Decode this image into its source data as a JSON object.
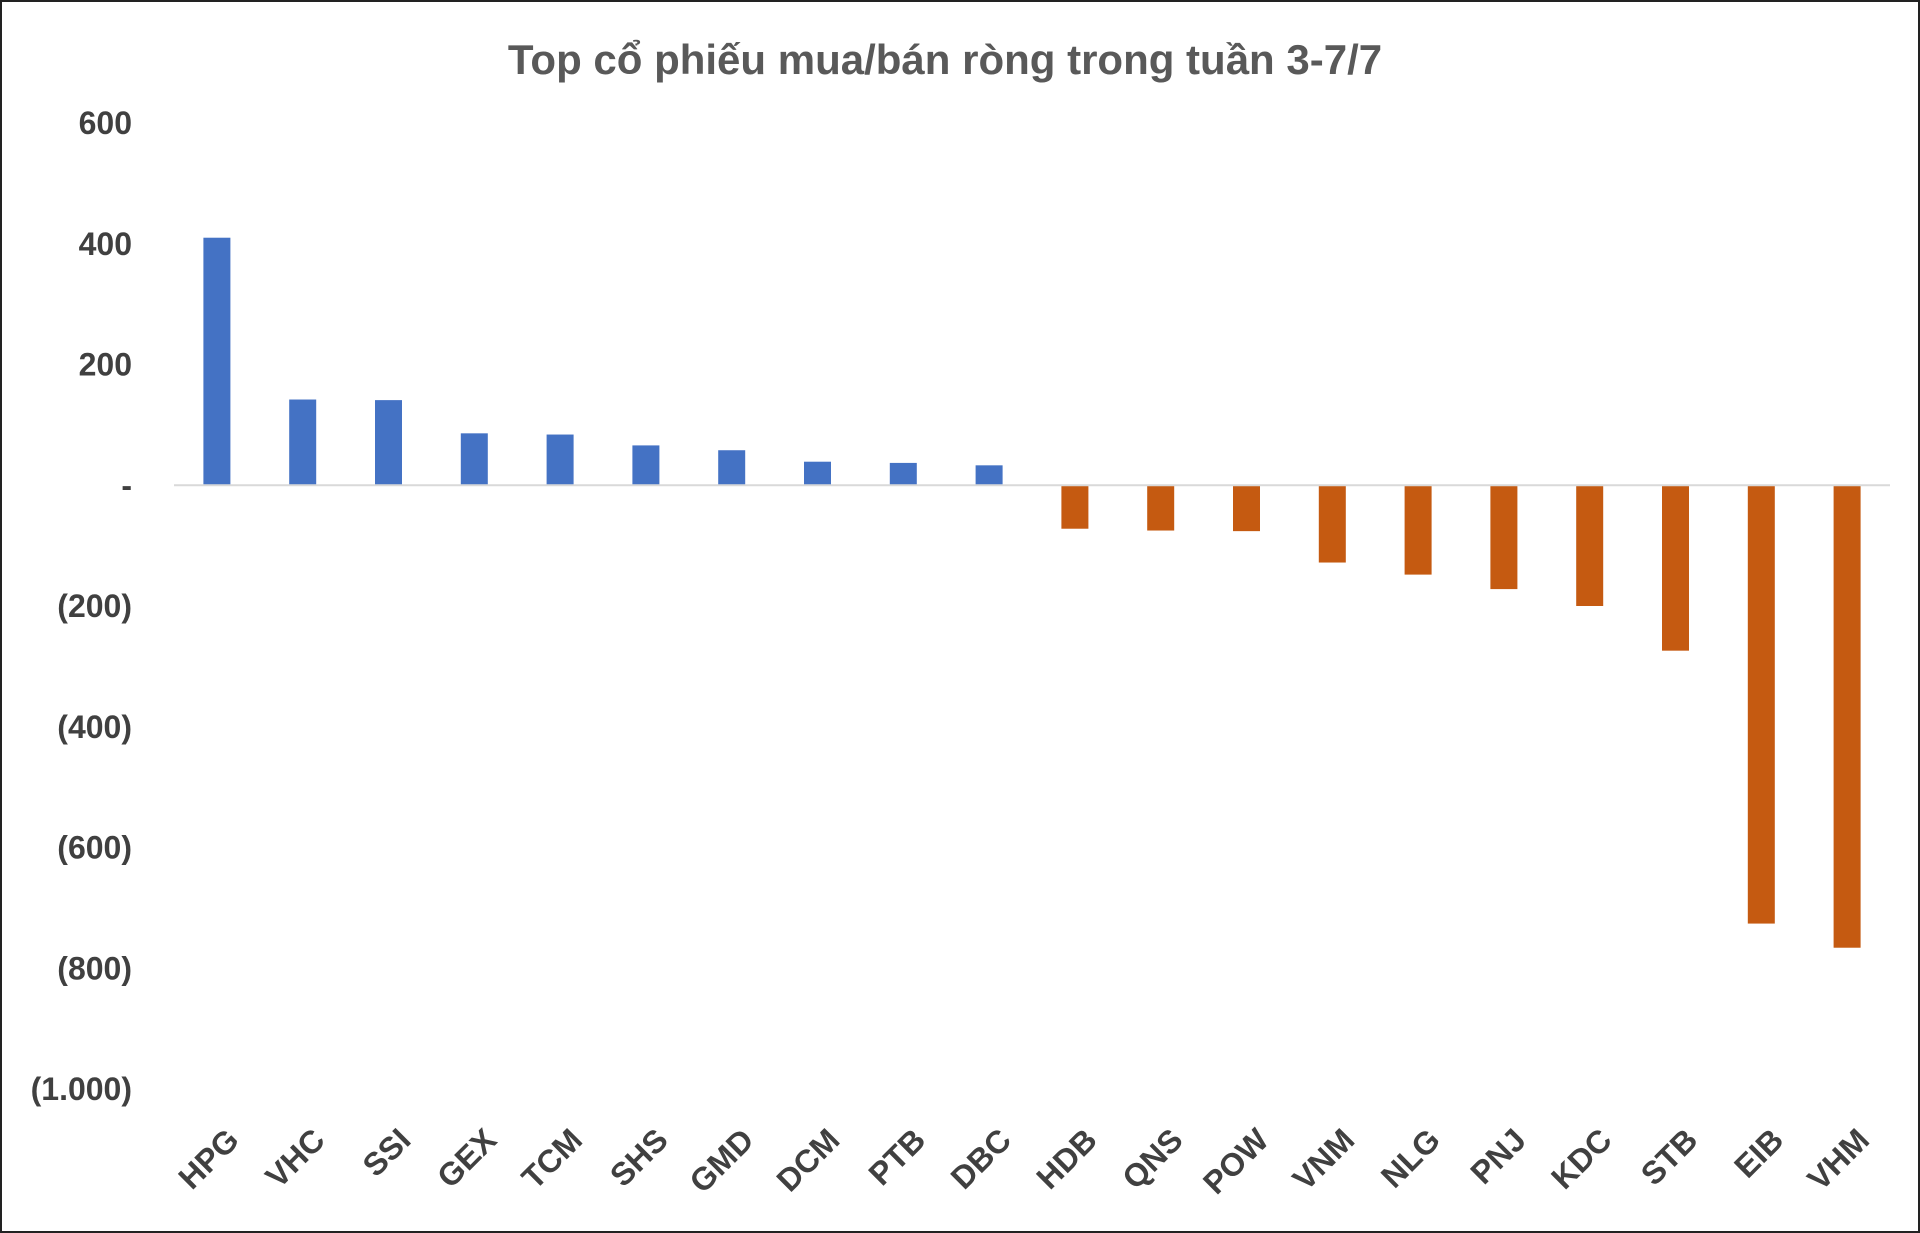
{
  "chart_data": {
    "type": "bar",
    "title": "Top cổ phiếu mua/bán ròng trong tuần 3-7/7",
    "xlabel": "",
    "ylabel": "",
    "ylim": [
      -1000,
      600
    ],
    "y_ticks": [
      {
        "value": 600,
        "label": "600"
      },
      {
        "value": 400,
        "label": "400"
      },
      {
        "value": 200,
        "label": "200"
      },
      {
        "value": 0,
        "label": "-"
      },
      {
        "value": -200,
        "label": "(200)"
      },
      {
        "value": -400,
        "label": "(400)"
      },
      {
        "value": -600,
        "label": "(600)"
      },
      {
        "value": -800,
        "label": "(800)"
      },
      {
        "value": -1000,
        "label": "(1.000)"
      }
    ],
    "categories": [
      "HPG",
      "VHC",
      "SSI",
      "GEX",
      "TCM",
      "SHS",
      "GMD",
      "DCM",
      "PTB",
      "DBC",
      "HDB",
      "QNS",
      "POW",
      "VNM",
      "NLG",
      "PNJ",
      "KDC",
      "STB",
      "EIB",
      "VHM"
    ],
    "values": [
      410,
      142,
      141,
      86,
      84,
      66,
      58,
      39,
      37,
      33,
      -72,
      -75,
      -76,
      -128,
      -148,
      -172,
      -200,
      -274,
      -726,
      -766
    ],
    "grid": false,
    "legend": "none",
    "colors": {
      "positive": "#4472C4",
      "negative": "#C55A11",
      "axis": "#D9D9D9",
      "title": "#595959",
      "tick": "#404040"
    }
  }
}
